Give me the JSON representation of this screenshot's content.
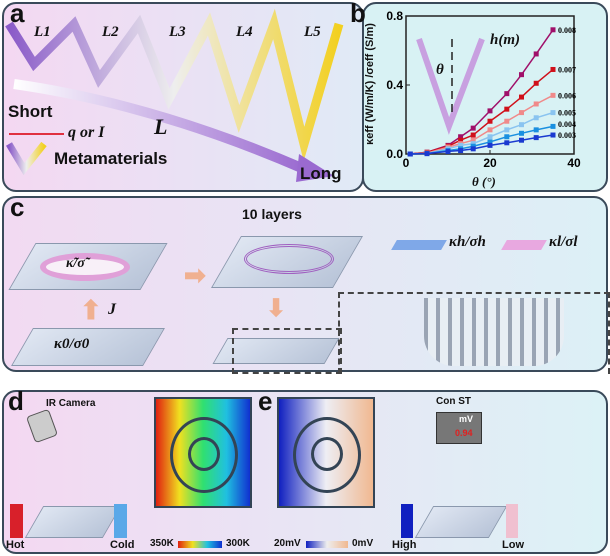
{
  "panel_a": {
    "label": "a",
    "segments": [
      "L1",
      "L2",
      "L3",
      "L4",
      "L5"
    ],
    "short": "Short",
    "long": "Long",
    "arrow_legend": "q or I",
    "L": "L",
    "metamaterials": "Metamaterials"
  },
  "panel_b": {
    "label": "b"
  },
  "chart_data": {
    "type": "line",
    "xlabel": "θ (°)",
    "ylabel": "κeff (W/m/K) /σeff (S/m)",
    "xlim": [
      0,
      40
    ],
    "ylim": [
      0,
      0.8
    ],
    "xticks": [
      "0",
      "20",
      "40"
    ],
    "yticks": [
      "0.0",
      "0.4",
      "0.8"
    ],
    "grid": false,
    "inset_labels": {
      "theta": "θ",
      "h": "h(m)"
    },
    "x": [
      1,
      5,
      10,
      13,
      16,
      20,
      24,
      27.5,
      31,
      35
    ],
    "series": [
      {
        "name": "0.008",
        "color": "#a0106a",
        "values": [
          0,
          0.01,
          0.05,
          0.1,
          0.15,
          0.25,
          0.35,
          0.46,
          0.58,
          0.72
        ]
      },
      {
        "name": "0.007",
        "color": "#d0101a",
        "values": [
          0,
          0.01,
          0.045,
          0.08,
          0.11,
          0.19,
          0.26,
          0.33,
          0.41,
          0.49
        ]
      },
      {
        "name": "0.006",
        "color": "#f08a8a",
        "values": [
          0,
          0.005,
          0.04,
          0.06,
          0.08,
          0.14,
          0.19,
          0.24,
          0.29,
          0.34
        ]
      },
      {
        "name": "0.005",
        "color": "#8ac4f0",
        "values": [
          0,
          0.004,
          0.03,
          0.05,
          0.06,
          0.1,
          0.14,
          0.17,
          0.21,
          0.24
        ]
      },
      {
        "name": "0.004",
        "color": "#1a90e0",
        "values": [
          0,
          0.003,
          0.02,
          0.03,
          0.045,
          0.07,
          0.1,
          0.12,
          0.14,
          0.16
        ]
      },
      {
        "name": "0.003",
        "color": "#1a3ad0",
        "values": [
          0,
          0.002,
          0.015,
          0.02,
          0.03,
          0.05,
          0.065,
          0.08,
          0.095,
          0.11
        ]
      }
    ]
  },
  "panel_c": {
    "label": "c",
    "top_left": "κ̃/σ̃",
    "bottom_left": "κ0/σ0",
    "J": "J",
    "layers": "10 layers",
    "legend_h": "κh/σh",
    "legend_l": "κl/σl",
    "color_h": "#7fa8e8",
    "color_l": "#e8a8e0"
  },
  "panel_d": {
    "label": "d",
    "camera": "IR Camera",
    "hot": "Hot",
    "cold": "Cold",
    "scale_min": "350K",
    "scale_max": "300K"
  },
  "panel_e": {
    "label": "e",
    "meter": "Con ST",
    "unit": "mV",
    "reading": "0.94",
    "high": "High",
    "low": "Low",
    "scale_min": "20mV",
    "scale_max": "0mV"
  }
}
